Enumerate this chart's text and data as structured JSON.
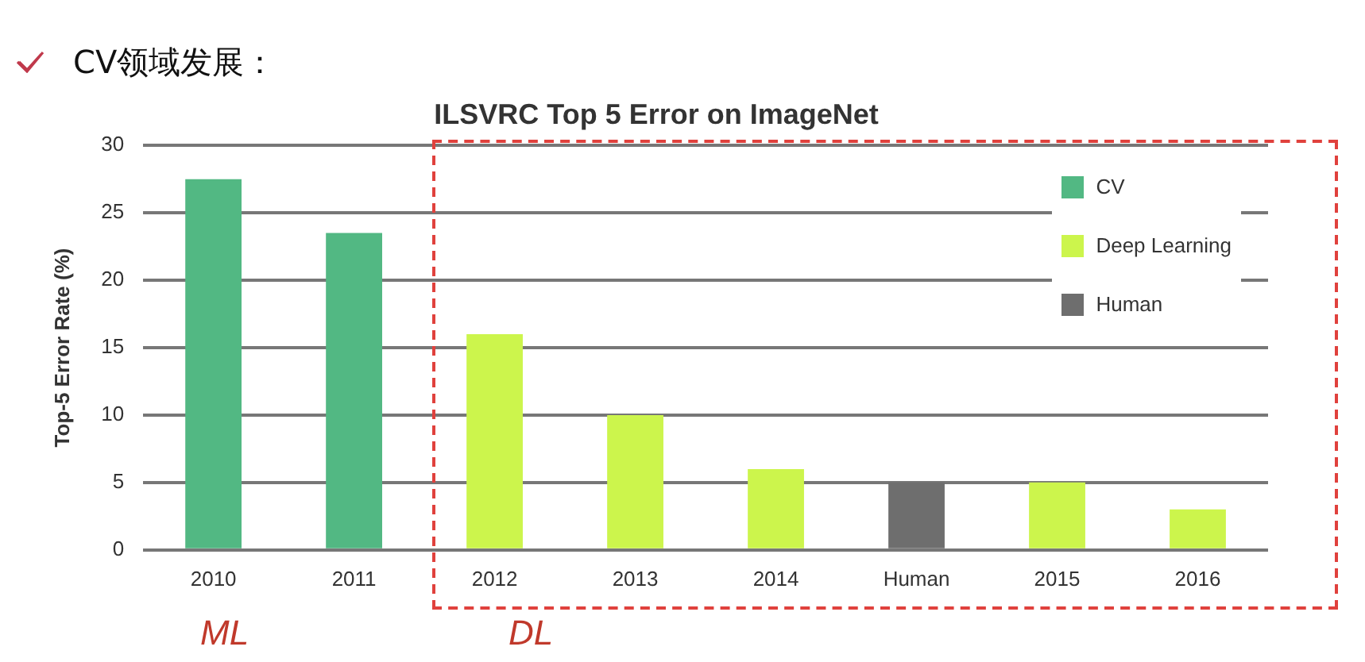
{
  "chart_data": {
    "type": "bar",
    "title": "ILSVRC Top 5 Error on ImageNet",
    "ylabel": "Top-5 Error Rate (%)",
    "annotations": [
      "CV领域发展：",
      "ML",
      "DL"
    ],
    "categories": [
      "2010",
      "2011",
      "2012",
      "2013",
      "2014",
      "Human",
      "2015",
      "2016"
    ],
    "series": [
      {
        "name": "CV",
        "color": "#52b883",
        "values": [
          27.5,
          23.5,
          null,
          null,
          null,
          null,
          null,
          null
        ]
      },
      {
        "name": "Deep Learning",
        "color": "#ccf54c",
        "values": [
          null,
          null,
          16,
          10,
          6,
          null,
          5,
          3
        ]
      },
      {
        "name": "Human",
        "color": "#6e6e6e",
        "values": [
          null,
          null,
          null,
          null,
          null,
          5,
          null,
          null
        ]
      }
    ],
    "ylim": [
      0,
      30
    ],
    "yticks": [
      0,
      5,
      10,
      15,
      20,
      25,
      30
    ],
    "grid": "y",
    "legend": "top right"
  }
}
